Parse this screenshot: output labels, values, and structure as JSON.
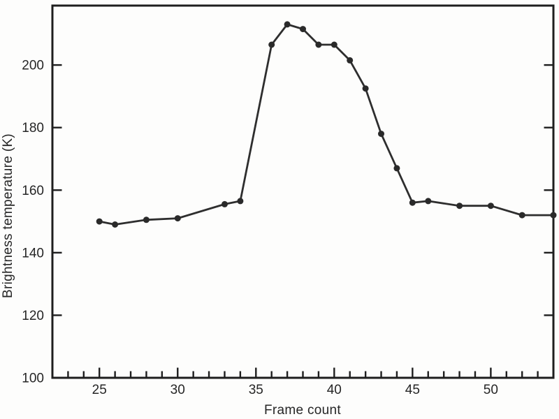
{
  "figure": {
    "kind": "scanned-scientific-line-plot",
    "title": ""
  },
  "colors": {
    "background": "#fdfdfc",
    "axis": "#1e1e1e",
    "plot_line": "#2e2e2e",
    "marker": "#2a2a2a",
    "text": "#262626"
  },
  "chart_data": {
    "type": "line",
    "title": "",
    "xlabel": "Frame count",
    "ylabel": "Brightness temperature (K)",
    "xlim": [
      22,
      54
    ],
    "ylim": [
      100,
      219
    ],
    "x_major_ticks": [
      25,
      30,
      35,
      40,
      45,
      50
    ],
    "x_minor_tick_step": 1,
    "y_major_ticks": [
      100,
      120,
      140,
      160,
      180,
      200
    ],
    "grid": false,
    "legend": null,
    "marker": "filled-circle",
    "frame": "full-box-with-inward-ticks",
    "series": [
      {
        "name": "brightness-temperature",
        "x": [
          25,
          26,
          28,
          30,
          33,
          34,
          36,
          37,
          38,
          39,
          40,
          41,
          42,
          43,
          44,
          45,
          46,
          48,
          50,
          52,
          54
        ],
        "y": [
          150,
          149,
          150.5,
          151,
          155.5,
          156.5,
          206.5,
          213,
          211.5,
          206.5,
          206.5,
          201.5,
          192.5,
          178,
          167,
          156,
          156.5,
          155,
          155,
          152,
          152
        ]
      }
    ]
  }
}
